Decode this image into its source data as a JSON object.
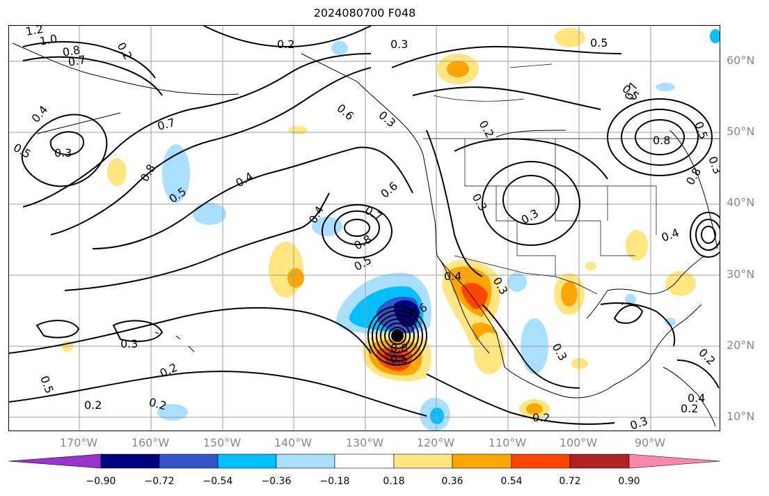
{
  "title": "2024080700 F048",
  "map": {
    "lat_labels": [
      "60°N",
      "50°N",
      "40°N",
      "30°N",
      "20°N",
      "10°N"
    ],
    "lon_labels": [
      "170°W",
      "160°W",
      "150°W",
      "140°W",
      "130°W",
      "120°W",
      "110°W",
      "100°W",
      "90°W"
    ],
    "contour_labels": [
      "1.2",
      "1.0",
      "0.8",
      "0.7",
      "0.2",
      "0.3",
      "0.5",
      "0.4",
      "0.3",
      "0.5",
      "0.7",
      "0.8",
      "0.2",
      "0.6",
      "0.3",
      "0.2",
      "0.5",
      "0.4",
      "0.5",
      "0.8",
      "0.6",
      "0.7",
      "0.8",
      "0.5",
      "0.4",
      "0.4",
      "0.3",
      "0.8",
      "0.5",
      "0.3",
      "0.3",
      "0.2",
      "0.2",
      "0.2",
      "0.3",
      "0.2",
      "0.3",
      "0.2",
      "0.6",
      "0.5",
      "0.4",
      "0.7",
      "0.8",
      "0.4",
      "0.3",
      "0.2",
      "0.3",
      "0.5"
    ],
    "colors": {
      "contour": "#000000",
      "grid": "#9e9e9e",
      "coast": "#000000",
      "storm_marker": "#000000"
    }
  },
  "colorbar": {
    "levels": [
      "−0.90",
      "−0.72",
      "−0.54",
      "−0.36",
      "−0.18",
      "0.18",
      "0.36",
      "0.54",
      "0.72",
      "0.90"
    ],
    "colors": [
      "#9933cc",
      "#000080",
      "#3355cc",
      "#00bfff",
      "#aadfff",
      "#ffffff",
      "#ffe680",
      "#ffa500",
      "#ff4500",
      "#b22222",
      "#ff88aa"
    ]
  }
}
